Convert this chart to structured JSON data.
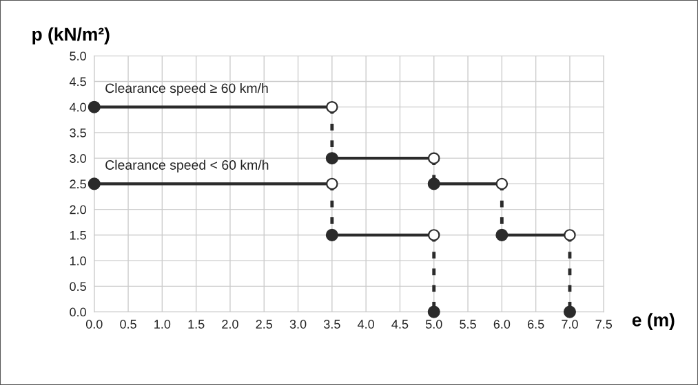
{
  "chart_data": {
    "type": "step",
    "xlabel": "e (m)",
    "ylabel": "p (kN/m²)",
    "series": [
      {
        "color": "#2b2b2b",
        "x": [
          0.0,
          3.5,
          5.0,
          6.0,
          7.0
        ],
        "values": [
          4.0,
          3.0,
          2.5,
          1.5,
          0.0
        ]
      },
      {
        "color": "#2b2b2b",
        "x": [
          0.0,
          3.5,
          5.0
        ],
        "values": [
          2.5,
          1.5,
          0.0
        ]
      }
    ],
    "annotations": [
      {
        "text": "Clearance speed ≥ 60 km/h",
        "x": 0.1,
        "y": 4.0
      },
      {
        "text": "Clearance speed < 60 km/h",
        "x": 0.1,
        "y": 2.5
      }
    ],
    "xlim": [
      0.0,
      7.5
    ],
    "ylim": [
      0.0,
      5.0
    ],
    "xticks": [
      {
        "value": 0,
        "label": "0.0"
      },
      0.5,
      {
        "value": 1,
        "label": "1.0"
      },
      1.5,
      {
        "value": 2,
        "label": "2.0"
      },
      2.5,
      {
        "value": 3,
        "label": "3.0"
      },
      3.5,
      {
        "value": 4,
        "label": "4.0"
      },
      4.5,
      {
        "value": 5,
        "label": "5.0"
      },
      5.5,
      {
        "value": 6,
        "label": "6.0"
      },
      6.5,
      {
        "value": 7,
        "label": "7.0"
      },
      7.5
    ],
    "yticks": [
      {
        "value": 0,
        "label": "0.0"
      },
      0.5,
      {
        "value": 1,
        "label": "1.0"
      },
      1.5,
      {
        "value": 2,
        "label": "2.0"
      },
      2.5,
      {
        "value": 3,
        "label": "3.0"
      },
      3.5,
      {
        "value": 4,
        "label": "4.0"
      },
      4.5,
      {
        "value": 5,
        "label": "5.0"
      }
    ],
    "grid": true,
    "marker": "circle",
    "line_style": "dashed",
    "legend": false
  }
}
